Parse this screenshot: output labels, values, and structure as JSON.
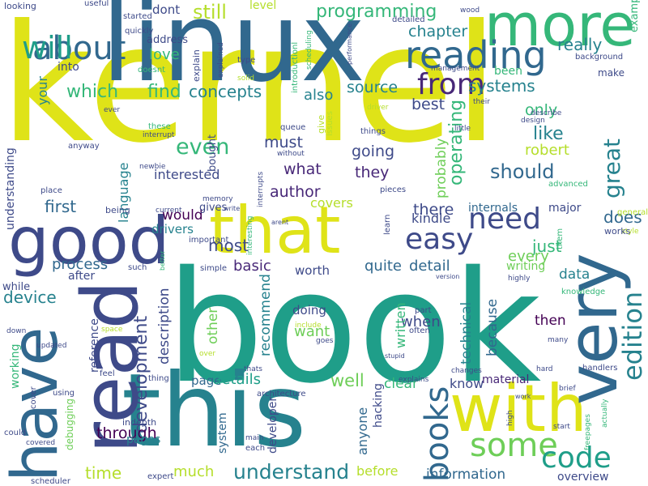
{
  "palette": [
    "#440154",
    "#482878",
    "#3e4a89",
    "#31688e",
    "#26828e",
    "#1f9e89",
    "#35b779",
    "#6ece58",
    "#b5de2b",
    "#fde725"
  ],
  "words": [
    {
      "text": "kernel",
      "color": "#dfe318"
    },
    {
      "text": "book",
      "color": "#1f9e89"
    },
    {
      "text": "linux",
      "color": "#31688e"
    },
    {
      "text": "this",
      "color": "#26828e"
    },
    {
      "text": "read",
      "color": "#3e4a89"
    },
    {
      "text": "have",
      "color": "#31688e"
    },
    {
      "text": "good",
      "color": "#3e4a89"
    },
    {
      "text": "that",
      "color": "#dfe318"
    },
    {
      "text": "with",
      "color": "#dfe318"
    },
    {
      "text": "very",
      "color": "#31688e"
    },
    {
      "text": "more",
      "color": "#35b779"
    },
    {
      "text": "reading",
      "color": "#31688e"
    },
    {
      "text": "from",
      "color": "#482878"
    },
    {
      "text": "easy",
      "color": "#3e4a89"
    },
    {
      "text": "need",
      "color": "#3e4a89"
    },
    {
      "text": "about",
      "color": "#31688e"
    },
    {
      "text": "will",
      "color": "#1f9e89"
    },
    {
      "text": "some",
      "color": "#6ece58"
    },
    {
      "text": "code",
      "color": "#1f9e89"
    },
    {
      "text": "books",
      "color": "#31688e"
    },
    {
      "text": "edition",
      "color": "#26828e"
    },
    {
      "text": "great",
      "color": "#26828e"
    },
    {
      "text": "understand",
      "color": "#26828e"
    },
    {
      "text": "still",
      "color": "#b5de2b"
    },
    {
      "text": "development",
      "color": "#3e4a89"
    },
    {
      "text": "programming",
      "color": "#35b779"
    },
    {
      "text": "chapter",
      "color": "#26828e"
    },
    {
      "text": "really",
      "color": "#26828e"
    },
    {
      "text": "which",
      "color": "#35b779"
    },
    {
      "text": "find",
      "color": "#35b779"
    },
    {
      "text": "concepts",
      "color": "#26828e"
    },
    {
      "text": "systems",
      "color": "#26828e"
    },
    {
      "text": "source",
      "color": "#26828e"
    },
    {
      "text": "also",
      "color": "#26828e"
    },
    {
      "text": "best",
      "color": "#3e4a89"
    },
    {
      "text": "only",
      "color": "#35b779"
    },
    {
      "text": "like",
      "color": "#26828e"
    },
    {
      "text": "even",
      "color": "#35b779"
    },
    {
      "text": "must",
      "color": "#3e4a89"
    },
    {
      "text": "what",
      "color": "#482878"
    },
    {
      "text": "they",
      "color": "#482878"
    },
    {
      "text": "going",
      "color": "#3e4a89"
    },
    {
      "text": "should",
      "color": "#31688e"
    },
    {
      "text": "robert",
      "color": "#b5de2b"
    },
    {
      "text": "operating",
      "color": "#35b779"
    },
    {
      "text": "probably",
      "color": "#6ece58"
    },
    {
      "text": "author",
      "color": "#482878"
    },
    {
      "text": "interested",
      "color": "#3e4a89"
    },
    {
      "text": "language",
      "color": "#26828e"
    },
    {
      "text": "first",
      "color": "#31688e"
    },
    {
      "text": "would",
      "color": "#440154"
    },
    {
      "text": "drivers",
      "color": "#26828e"
    },
    {
      "text": "covers",
      "color": "#b5de2b"
    },
    {
      "text": "there",
      "color": "#3e4a89"
    },
    {
      "text": "kindle",
      "color": "#3e4a89"
    },
    {
      "text": "internals",
      "color": "#31688e"
    },
    {
      "text": "major",
      "color": "#3e4a89"
    },
    {
      "text": "does",
      "color": "#31688e"
    },
    {
      "text": "just",
      "color": "#35b779"
    },
    {
      "text": "every",
      "color": "#6ece58"
    },
    {
      "text": "detail",
      "color": "#31688e"
    },
    {
      "text": "quite",
      "color": "#31688e"
    },
    {
      "text": "process",
      "color": "#31688e"
    },
    {
      "text": "device",
      "color": "#26828e"
    },
    {
      "text": "most",
      "color": "#3e4a89"
    },
    {
      "text": "basic",
      "color": "#482878"
    },
    {
      "text": "worth",
      "color": "#3e4a89"
    },
    {
      "text": "writing",
      "color": "#6ece58"
    },
    {
      "text": "data",
      "color": "#26828e"
    },
    {
      "text": "doing",
      "color": "#3e4a89"
    },
    {
      "text": "want",
      "color": "#6ece58"
    },
    {
      "text": "when",
      "color": "#3e4a89"
    },
    {
      "text": "technical",
      "color": "#26828e"
    },
    {
      "text": "because",
      "color": "#31688e"
    },
    {
      "text": "then",
      "color": "#440154"
    },
    {
      "text": "recommend",
      "color": "#26828e"
    },
    {
      "text": "other",
      "color": "#6ece58"
    },
    {
      "text": "description",
      "color": "#3e4a89"
    },
    {
      "text": "reference",
      "color": "#3e4a89"
    },
    {
      "text": "page",
      "color": "#31688e"
    },
    {
      "text": "details",
      "color": "#1f9e89"
    },
    {
      "text": "well",
      "color": "#6ece58"
    },
    {
      "text": "know",
      "color": "#3e4a89"
    },
    {
      "text": "clear",
      "color": "#35b779"
    },
    {
      "text": "material",
      "color": "#482878"
    },
    {
      "text": "through",
      "color": "#440154"
    },
    {
      "text": "pages",
      "color": "#26828e"
    },
    {
      "text": "time",
      "color": "#b5de2b"
    },
    {
      "text": "much",
      "color": "#b5de2b"
    },
    {
      "text": "information",
      "color": "#31688e"
    },
    {
      "text": "before",
      "color": "#b5de2b"
    },
    {
      "text": "overview",
      "color": "#3e4a89"
    },
    {
      "text": "written",
      "color": "#35b779"
    },
    {
      "text": "anyone",
      "color": "#31688e"
    },
    {
      "text": "hacking",
      "color": "#3e4a89"
    },
    {
      "text": "developer",
      "color": "#3e4a89"
    },
    {
      "text": "system",
      "color": "#31688e"
    },
    {
      "text": "working",
      "color": "#35b779"
    },
    {
      "text": "debugging",
      "color": "#6ece58"
    },
    {
      "text": "while",
      "color": "#3e4a89"
    },
    {
      "text": "after",
      "color": "#3e4a89"
    },
    {
      "text": "understanding",
      "color": "#3e4a89"
    },
    {
      "text": "your",
      "color": "#26828e"
    },
    {
      "text": "into",
      "color": "#3e4a89"
    },
    {
      "text": "love",
      "color": "#35b779"
    },
    {
      "text": "dont",
      "color": "#3e4a89"
    },
    {
      "text": "level",
      "color": "#b5de2b"
    },
    {
      "text": "address",
      "color": "#3e4a89"
    },
    {
      "text": "bought",
      "color": "#3e4a89"
    },
    {
      "text": "gives",
      "color": "#3e4a89"
    },
    {
      "text": "been",
      "color": "#35b779"
    },
    {
      "text": "make",
      "color": "#3e4a89"
    },
    {
      "text": "example",
      "color": "#35b779"
    },
    {
      "text": "looking",
      "color": "#3e4a89"
    },
    {
      "text": "useful",
      "color": "#3e4a89"
    },
    {
      "text": "quickly",
      "color": "#3e4a89"
    },
    {
      "text": "started",
      "color": "#3e4a89"
    },
    {
      "text": "explain",
      "color": "#3e4a89"
    },
    {
      "text": "explained",
      "color": "#3e4a89"
    },
    {
      "text": "doesnt",
      "color": "#35b779"
    },
    {
      "text": "type",
      "color": "#3e4a89"
    },
    {
      "text": "solid",
      "color": "#b5de2b"
    },
    {
      "text": "introductionl",
      "color": "#35b779"
    },
    {
      "text": "scheduling",
      "color": "#35b779"
    },
    {
      "text": "performance",
      "color": "#3e4a89"
    },
    {
      "text": "detailed",
      "color": "#3e4a89"
    },
    {
      "text": "wood",
      "color": "#3e4a89"
    },
    {
      "text": "management",
      "color": "#3e4a89"
    },
    {
      "text": "background",
      "color": "#3e4a89"
    },
    {
      "text": "describe",
      "color": "#3e4a89"
    },
    {
      "text": "their",
      "color": "#3e4a89"
    },
    {
      "text": "driver",
      "color": "#b5de2b"
    },
    {
      "text": "give",
      "color": "#b5de2b"
    },
    {
      "text": "issues",
      "color": "#b5de2b"
    },
    {
      "text": "things",
      "color": "#3e4a89"
    },
    {
      "text": "little",
      "color": "#3e4a89"
    },
    {
      "text": "design",
      "color": "#3e4a89"
    },
    {
      "text": "queue",
      "color": "#3e4a89"
    },
    {
      "text": "these",
      "color": "#35b779"
    },
    {
      "text": "interrupt",
      "color": "#3e4a89"
    },
    {
      "text": "anyway",
      "color": "#3e4a89"
    },
    {
      "text": "without",
      "color": "#3e4a89"
    },
    {
      "text": "newbie",
      "color": "#3e4a89"
    },
    {
      "text": "advanced",
      "color": "#35b779"
    },
    {
      "text": "memory",
      "color": "#3e4a89"
    },
    {
      "text": "interrupts",
      "color": "#3e4a89"
    },
    {
      "text": "pieces",
      "color": "#3e4a89"
    },
    {
      "text": "place",
      "color": "#3e4a89"
    },
    {
      "text": "ever",
      "color": "#3e4a89"
    },
    {
      "text": "being",
      "color": "#3e4a89"
    },
    {
      "text": "current",
      "color": "#3e4a89"
    },
    {
      "text": "write",
      "color": "#3e4a89"
    },
    {
      "text": "arent",
      "color": "#3e4a89"
    },
    {
      "text": "learn",
      "color": "#3e4a89"
    },
    {
      "text": "them",
      "color": "#35b779"
    },
    {
      "text": "general",
      "color": "#b5de2b"
    },
    {
      "text": "style",
      "color": "#b5de2b"
    },
    {
      "text": "works",
      "color": "#3e4a89"
    },
    {
      "text": "important",
      "color": "#3e4a89"
    },
    {
      "text": "interesting",
      "color": "#35b779"
    },
    {
      "text": "such",
      "color": "#3e4a89"
    },
    {
      "text": "simple",
      "color": "#3e4a89"
    },
    {
      "text": "better",
      "color": "#35b779"
    },
    {
      "text": "version",
      "color": "#3e4a89"
    },
    {
      "text": "highly",
      "color": "#3e4a89"
    },
    {
      "text": "knowledge",
      "color": "#35b779"
    },
    {
      "text": "part",
      "color": "#3e4a89"
    },
    {
      "text": "often",
      "color": "#3e4a89"
    },
    {
      "text": "many",
      "color": "#3e4a89"
    },
    {
      "text": "space",
      "color": "#b5de2b"
    },
    {
      "text": "include",
      "color": "#b5de2b"
    },
    {
      "text": "goes",
      "color": "#3e4a89"
    },
    {
      "text": "over",
      "color": "#b5de2b"
    },
    {
      "text": "updated",
      "color": "#3e4a89"
    },
    {
      "text": "down",
      "color": "#3e4a89"
    },
    {
      "text": "stupid",
      "color": "#3e4a89"
    },
    {
      "text": "hard",
      "color": "#3e4a89"
    },
    {
      "text": "handlers",
      "color": "#3e4a89"
    },
    {
      "text": "changes",
      "color": "#3e4a89"
    },
    {
      "text": "feel",
      "color": "#3e4a89"
    },
    {
      "text": "thing",
      "color": "#3e4a89"
    },
    {
      "text": "thats",
      "color": "#3e4a89"
    },
    {
      "text": "explains",
      "color": "#3e4a89"
    },
    {
      "text": "brief",
      "color": "#3e4a89"
    },
    {
      "text": "work",
      "color": "#3e4a89"
    },
    {
      "text": "using",
      "color": "#3e4a89"
    },
    {
      "text": "architecture",
      "color": "#3e4a89"
    },
    {
      "text": "cover",
      "color": "#3e4a89"
    },
    {
      "text": "indepth",
      "color": "#3e4a89"
    },
    {
      "text": "could",
      "color": "#3e4a89"
    },
    {
      "text": "covered",
      "color": "#3e4a89"
    },
    {
      "text": "main",
      "color": "#3e4a89"
    },
    {
      "text": "each",
      "color": "#3e4a89"
    },
    {
      "text": "high",
      "color": "#3e4a89"
    },
    {
      "text": "actually",
      "color": "#35b779"
    },
    {
      "text": "start",
      "color": "#3e4a89"
    },
    {
      "text": "freepages",
      "color": "#35b779"
    },
    {
      "text": "expert",
      "color": "#3e4a89"
    },
    {
      "text": "scheduler",
      "color": "#3e4a89"
    }
  ]
}
